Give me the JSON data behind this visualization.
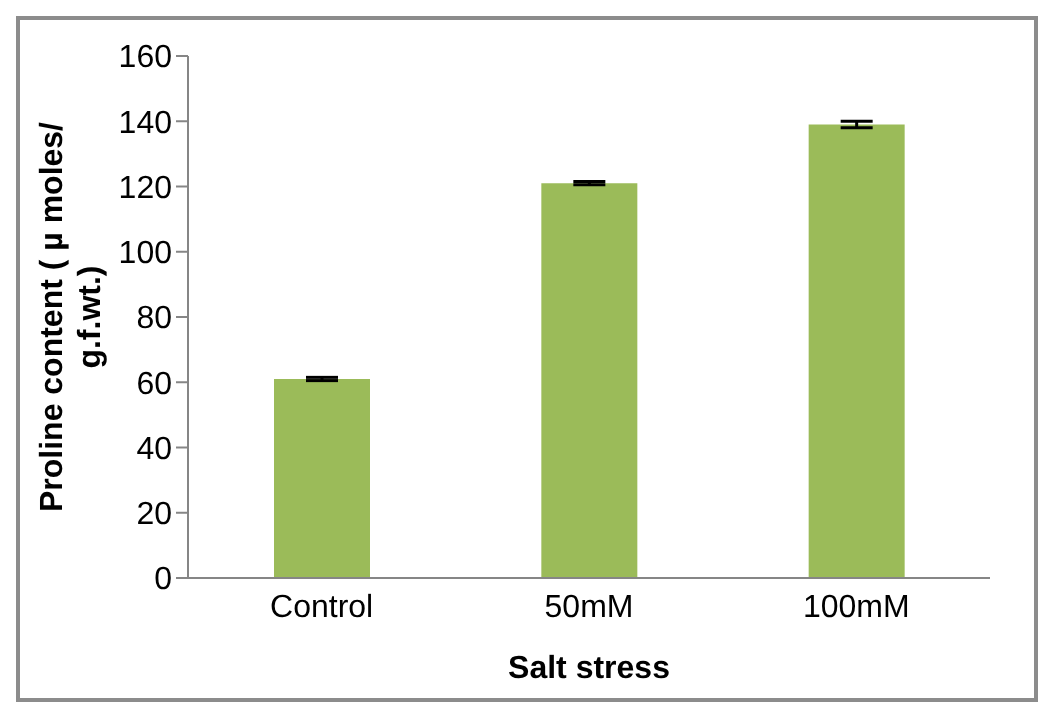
{
  "chart_data": {
    "type": "bar",
    "xlabel": "Salt stress",
    "ylabel": "Proline content ( µ moles/ g.f.wt.)",
    "categories": [
      "Control",
      "50mM",
      "100mM"
    ],
    "values": [
      61,
      121,
      139
    ],
    "errors": [
      0.5,
      0.5,
      1
    ],
    "color": "#9bbb59",
    "ylim": [
      0,
      160
    ],
    "yticks": [
      0,
      20,
      40,
      60,
      80,
      100,
      120,
      140,
      160
    ],
    "grid": false,
    "legend": false
  }
}
